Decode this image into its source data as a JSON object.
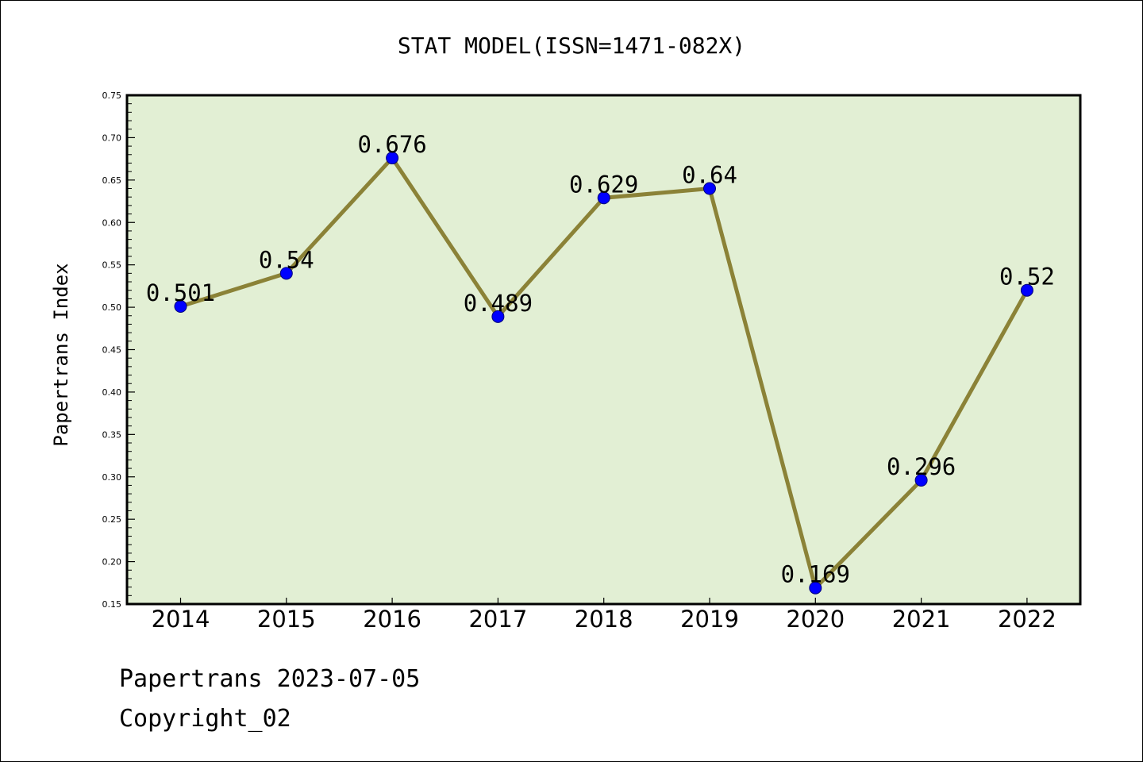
{
  "chart_data": {
    "type": "line",
    "title": "STAT MODEL(ISSN=1471-082X)",
    "xlabel": "",
    "ylabel": "Papertrans Index",
    "categories": [
      "2014",
      "2015",
      "2016",
      "2017",
      "2018",
      "2019",
      "2020",
      "2021",
      "2022"
    ],
    "series": [
      {
        "values": [
          0.501,
          0.54,
          0.676,
          0.489,
          0.629,
          0.64,
          0.169,
          0.296,
          0.52
        ],
        "data_labels": [
          "0.501",
          "0.54",
          "0.676",
          "0.489",
          "0.629",
          "0.64",
          "0.169",
          "0.296",
          "0.52"
        ]
      }
    ],
    "ylim": [
      0.15,
      0.75
    ],
    "yticks": [
      "0.15",
      "0.20",
      "0.25",
      "0.30",
      "0.35",
      "0.40",
      "0.45",
      "0.50",
      "0.55",
      "0.60",
      "0.65",
      "0.70",
      "0.75"
    ],
    "grid": false,
    "legend": "none"
  },
  "footer": {
    "date_line": "Papertrans 2023-07-05",
    "copyright_line": "Copyright_02"
  },
  "colors": {
    "plot_background": "#e2efd4",
    "line": "#8b8237",
    "marker_fill": "#0000ff",
    "marker_stroke": "#00007a",
    "axis": "#000000"
  }
}
